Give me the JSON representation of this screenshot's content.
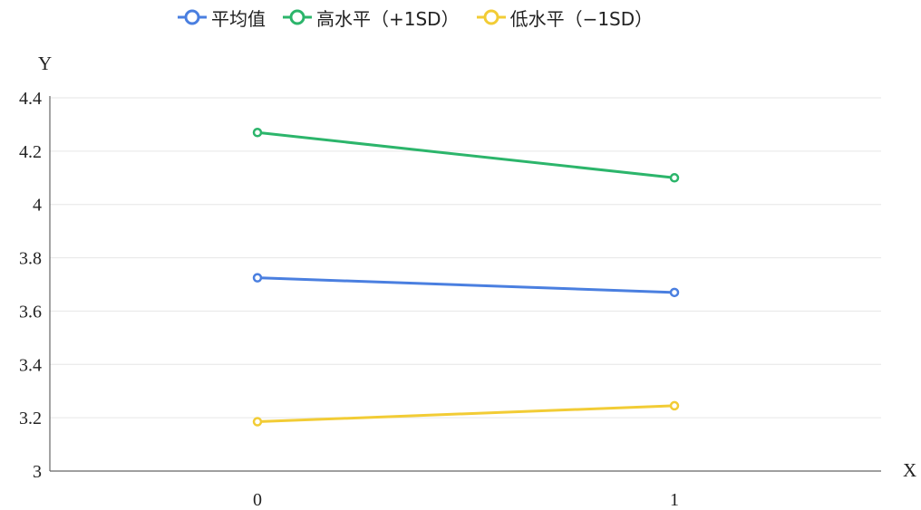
{
  "chart_data": {
    "type": "line",
    "xlabel": "X",
    "ylabel": "Y",
    "categories": [
      "0",
      "1"
    ],
    "ylim": [
      3,
      4.4
    ],
    "yticks": [
      "3",
      "3.2",
      "3.4",
      "3.6",
      "3.8",
      "4",
      "4.2",
      "4.4"
    ],
    "grid": true,
    "legend_position": "top",
    "series": [
      {
        "name": "平均值",
        "color": "#4a7fe0",
        "values": [
          3.725,
          3.67
        ]
      },
      {
        "name": "高水平（+1SD）",
        "color": "#2cb56b",
        "values": [
          4.27,
          4.1
        ]
      },
      {
        "name": "低水平（−1SD）",
        "color": "#f2cc35",
        "values": [
          3.185,
          3.245
        ]
      }
    ]
  }
}
